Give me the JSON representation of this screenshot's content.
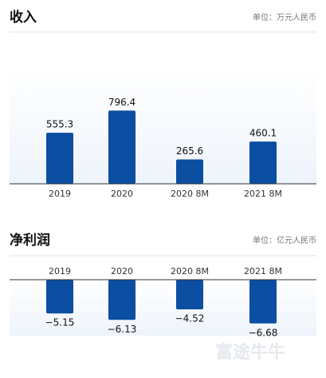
{
  "chart_data": [
    {
      "type": "bar",
      "title": "收入",
      "subtitle": "单位：万元人民币",
      "categories": [
        "2019",
        "2020",
        "2020 8M",
        "2021 8M"
      ],
      "values": [
        555.3,
        796.4,
        265.6,
        460.1
      ],
      "color": "#0b4ea2",
      "ylim": [
        0,
        1000
      ]
    },
    {
      "type": "bar",
      "title": "净利润",
      "subtitle": "单位：亿元人民币",
      "categories": [
        "2019",
        "2020",
        "2020 8M",
        "2021 8M"
      ],
      "values": [
        -5.15,
        -6.13,
        -4.52,
        -6.68
      ],
      "value_labels": [
        "−5.15",
        "−6.13",
        "−4.52",
        "−6.68"
      ],
      "color": "#0b4ea2",
      "ylim": [
        -10,
        0
      ]
    }
  ],
  "watermark": "富途牛牛"
}
